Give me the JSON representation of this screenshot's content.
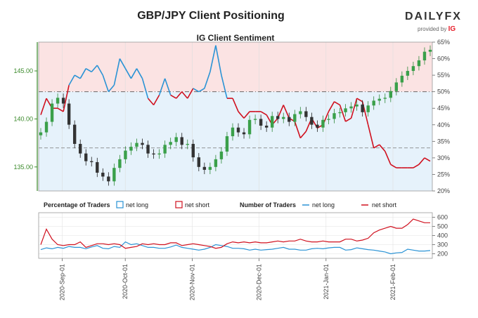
{
  "title": "GBP/JPY Client Positioning",
  "subtitle": "IG Client Sentiment",
  "logo": {
    "brand": "DAILYFX",
    "provided_by": "provided by",
    "provider": "IG"
  },
  "legend": {
    "pct_title": "Percentage of Traders",
    "pct_long": "net long",
    "pct_short": "net short",
    "num_title": "Number of Traders",
    "num_long": "net long",
    "num_short": "net short"
  },
  "colors": {
    "long": "#2a93d5",
    "short": "#d0101e",
    "price_axis": "#3a8a2a",
    "long_fill": "#e6f2fb",
    "short_fill": "#fbe3e3"
  },
  "chart_data": [
    {
      "type": "line",
      "name": "price_and_sentiment",
      "title": "IG Client Sentiment",
      "y_left": {
        "ticks": [
          "135.00",
          "140.00",
          "145.00"
        ],
        "ylim": [
          132.5,
          148.0
        ]
      },
      "y_right": {
        "ticks": [
          "20%",
          "25%",
          "30%",
          "35%",
          "40%",
          "45%",
          "50%",
          "55%",
          "60%",
          "65%"
        ],
        "ylim": [
          20,
          65
        ]
      },
      "x_ticks": [
        "2020-Sep-01",
        "2020-Oct-01",
        "2020-Nov-01",
        "2020-Dec-01",
        "2021-Jan-01",
        "2021-Feb-01"
      ],
      "x_range": [
        "2020-Aug-23",
        "2021-Feb-22"
      ],
      "price_close": [
        138.6,
        139.7,
        141.6,
        142.2,
        141.6,
        139.4,
        137.4,
        136.4,
        135.6,
        135.5,
        134.4,
        134.0,
        133.5,
        134.9,
        135.8,
        136.7,
        137.1,
        137.5,
        137.3,
        136.4,
        136.3,
        136.4,
        137.3,
        137.6,
        138.1,
        137.3,
        137.4,
        136.0,
        135.0,
        134.7,
        135.0,
        135.8,
        136.6,
        138.2,
        139.1,
        138.6,
        138.4,
        139.9,
        140.0,
        139.3,
        139.1,
        140.3,
        140.0,
        140.2,
        139.7,
        140.5,
        140.8,
        140.2,
        139.4,
        139.1,
        139.9,
        140.0,
        140.6,
        140.7,
        141.1,
        141.3,
        141.5,
        140.7,
        141.4,
        141.9,
        142.1,
        142.2,
        142.9,
        143.8,
        144.5,
        145.0,
        145.5,
        146.1,
        147.0,
        147.2
      ],
      "net_long_pct": [
        43,
        48,
        45,
        45,
        44,
        52,
        55,
        54,
        57,
        56,
        58,
        55,
        50,
        52,
        60,
        57,
        54,
        57,
        54,
        48,
        46,
        49,
        54,
        49,
        48,
        50,
        48,
        51,
        50,
        51,
        56,
        64,
        55,
        48,
        48,
        44,
        42,
        44,
        44,
        44,
        43,
        40,
        42,
        46,
        42,
        41,
        36,
        38,
        42,
        39,
        40,
        44,
        47,
        46,
        41,
        42,
        48,
        47,
        40,
        33,
        34,
        32,
        28,
        27,
        27,
        27,
        27,
        28,
        30,
        29
      ]
    },
    {
      "type": "line",
      "name": "number_of_traders",
      "y_right": {
        "ticks": [
          "200",
          "300",
          "400",
          "500",
          "600"
        ],
        "ylim": [
          150,
          650
        ]
      },
      "series": [
        {
          "name": "net long",
          "values": [
            245,
            265,
            255,
            270,
            260,
            280,
            270,
            270,
            255,
            275,
            290,
            260,
            255,
            280,
            270,
            330,
            300,
            310,
            290,
            270,
            270,
            260,
            260,
            275,
            295,
            270,
            260,
            250,
            240,
            250,
            270,
            300,
            290,
            280,
            260,
            260,
            255,
            240,
            250,
            240,
            245,
            250,
            260,
            270,
            250,
            250,
            240,
            240,
            255,
            260,
            255,
            265,
            270,
            270,
            240,
            245,
            265,
            255,
            245,
            240,
            230,
            220,
            200,
            210,
            215,
            250,
            240,
            230,
            230,
            235
          ]
        },
        {
          "name": "net short",
          "values": [
            300,
            470,
            360,
            300,
            290,
            300,
            300,
            330,
            270,
            290,
            310,
            310,
            300,
            310,
            300,
            260,
            270,
            280,
            310,
            300,
            310,
            300,
            300,
            320,
            320,
            290,
            300,
            310,
            300,
            290,
            280,
            260,
            270,
            310,
            330,
            320,
            330,
            320,
            330,
            320,
            320,
            330,
            340,
            330,
            340,
            340,
            360,
            340,
            330,
            330,
            340,
            330,
            330,
            330,
            360,
            360,
            340,
            350,
            370,
            430,
            460,
            480,
            500,
            480,
            480,
            520,
            580,
            560,
            540,
            540
          ]
        }
      ]
    }
  ]
}
